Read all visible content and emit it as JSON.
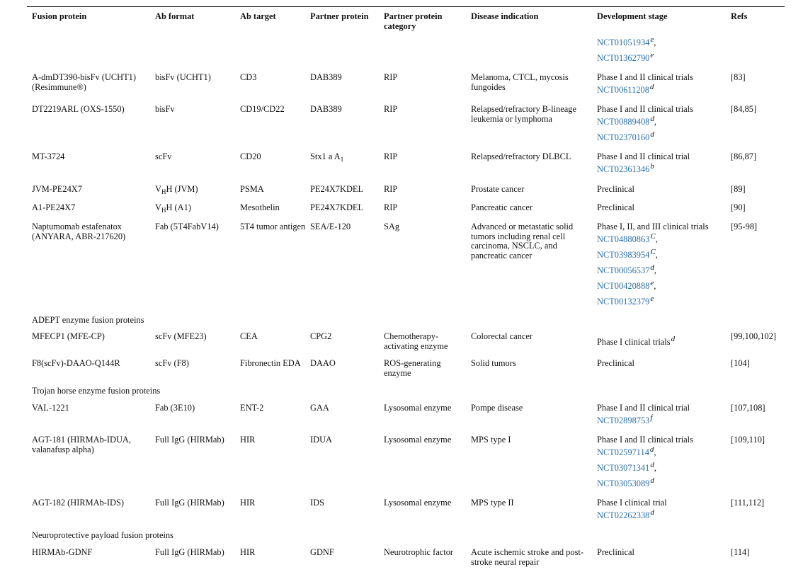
{
  "headers": {
    "fusion_protein": "Fusion protein",
    "ab_format": "Ab format",
    "ab_target": "Ab target",
    "partner_protein": "Partner protein",
    "partner_category": "Partner protein category",
    "disease": "Disease indication",
    "stage": "Development stage",
    "refs": "Refs"
  },
  "top_trials": {
    "t1": "NCT01051934",
    "t1_sup": "e",
    "t1_after": ",",
    "t2": "NCT01362790",
    "t2_sup": "e"
  },
  "rows": [
    {
      "fusion": "A-dmDT390-bisFv (UCHT1) (Resimmune®)",
      "format": "bisFv (UCHT1)",
      "target": "CD3",
      "partner": "DAB389",
      "category": "RIP",
      "disease": "Melanoma, CTCL, mycosis fungoides",
      "stage": "Phase I and II clinical trials",
      "trials": [
        {
          "id": "NCT00611208",
          "sup": "d",
          "after": ""
        }
      ],
      "refs": "[83]"
    },
    {
      "fusion": "DT2219ARL (OXS-1550)",
      "format": "bisFv",
      "target": "CD19/CD22",
      "partner": "DAB389",
      "category": "RIP",
      "disease": "Relapsed/refractory B-lineage leukemia or lymphoma",
      "stage": "Phase I and II clinical trials",
      "trials": [
        {
          "id": "NCT00889408",
          "sup": "d",
          "after": ","
        },
        {
          "id": "NCT02370160",
          "sup": "d",
          "after": ""
        }
      ],
      "refs": "[84,85]"
    },
    {
      "fusion": "MT-3724",
      "format": "scFv",
      "target": "CD20",
      "partner_main": "Stx1 a A",
      "partner_sub": "1",
      "category": "RIP",
      "disease": "Relapsed/refractory DLBCL",
      "stage": "Phase I and II clinical trial",
      "trials": [
        {
          "id": "NCT02361346",
          "sup": "b",
          "after": ""
        }
      ],
      "refs": "[86,87]"
    },
    {
      "fusion": "JVM-PE24X7",
      "format_main": "V",
      "format_sub": "H",
      "format_rest": "H (JVM)",
      "target": "PSMA",
      "partner": "PE24X7KDEL",
      "category": "RIP",
      "disease": "Prostate cancer",
      "stage": "Preclinical",
      "refs": "[89]"
    },
    {
      "fusion": "A1-PE24X7",
      "format_main": "V",
      "format_sub": "H",
      "format_rest": "H (A1)",
      "target": "Mesothelin",
      "partner": "PE24X7KDEL",
      "category": "RIP",
      "disease": "Pancreatic cancer",
      "stage": "Preclinical",
      "refs": "[90]"
    },
    {
      "fusion": "Naptumomab estafenatox (ANYARA, ABR-217620)",
      "format": "Fab (5T4FabV14)",
      "target": "5T4 tumor antigen",
      "partner": "SEA/E-120",
      "category": "SAg",
      "disease": "Advanced or metastatic solid tumors including renal cell carcinoma, NSCLC, and pancreatic cancer",
      "stage": "Phase I, II, and III clinical trials",
      "trials": [
        {
          "id": "NCT04880863",
          "sup": "C",
          "after": ","
        },
        {
          "id": "NCT03983954",
          "sup": "C",
          "after": ","
        },
        {
          "id": "NCT00056537",
          "sup": "d",
          "after": ","
        },
        {
          "id": "NCT00420888",
          "sup": "e",
          "after": ","
        },
        {
          "id": "NCT00132379",
          "sup": "e",
          "after": ""
        }
      ],
      "refs": "[95-98]"
    },
    {
      "fusion": "MFECP1 (MFE-CP)",
      "format": "scFv (MFE23)",
      "target": "CEA",
      "partner": "CPG2",
      "category": "Chemotherapy-activating enzyme",
      "disease": "Colorectal cancer",
      "stage": "Phase I clinical trials",
      "stage_sup": "d",
      "refs": "[99,100,102]"
    },
    {
      "fusion": "F8(scFv)-DAAO-Q144R",
      "format": "scFv (F8)",
      "target": "Fibronectin EDA",
      "partner": "DAAO",
      "category": "ROS-generating enzyme",
      "disease": "Solid tumors",
      "stage": "Preclinical",
      "refs": "[104]"
    },
    {
      "fusion": "VAL-1221",
      "format": "Fab (3E10)",
      "target": "ENT-2",
      "partner": "GAA",
      "category": "Lysosomal enzyme",
      "disease": "Pompe disease",
      "stage": "Phase I and II clinical trial",
      "trials": [
        {
          "id": "NCT02898753",
          "sup": "f",
          "after": ""
        }
      ],
      "refs": "[107,108]"
    },
    {
      "fusion": "AGT-181 (HIRMAb-IDUA, valanafusp alpha)",
      "format": "Full IgG (HIRMab)",
      "target": "HIR",
      "partner": "IDUA",
      "category": "Lysosomal enzyme",
      "disease": "MPS type I",
      "stage": "Phase I and II clinical trials",
      "trials": [
        {
          "id": "NCT02597114",
          "sup": "d",
          "after": ","
        },
        {
          "id": "NCT03071341",
          "sup": "d",
          "after": ","
        },
        {
          "id": "NCT03053089",
          "sup": "d",
          "after": ""
        }
      ],
      "refs": "[109,110]"
    },
    {
      "fusion": "AGT-182 (HIRMAb-IDS)",
      "format": "Full IgG (HIRMab)",
      "target": "HIR",
      "partner": "IDS",
      "category": "Lysosomal enzyme",
      "disease": "MPS type II",
      "stage": "Phase I clinical trial",
      "trials": [
        {
          "id": "NCT02262338",
          "sup": "d",
          "after": ""
        }
      ],
      "refs": "[111,112]"
    },
    {
      "fusion": "HIRMAb-GDNF",
      "format": "Full IgG (HIRMab)",
      "target": "HIR",
      "partner": "GDNF",
      "category": "Neurotrophic factor",
      "disease": "Acute ischemic stroke and post-stroke neural repair",
      "stage": "Preclinical",
      "refs": "[114]"
    }
  ],
  "sections": {
    "adept": "ADEPT enzyme fusion proteins",
    "trojan": "Trojan horse enzyme fusion proteins",
    "neuro": "Neuroprotective payload fusion proteins"
  }
}
